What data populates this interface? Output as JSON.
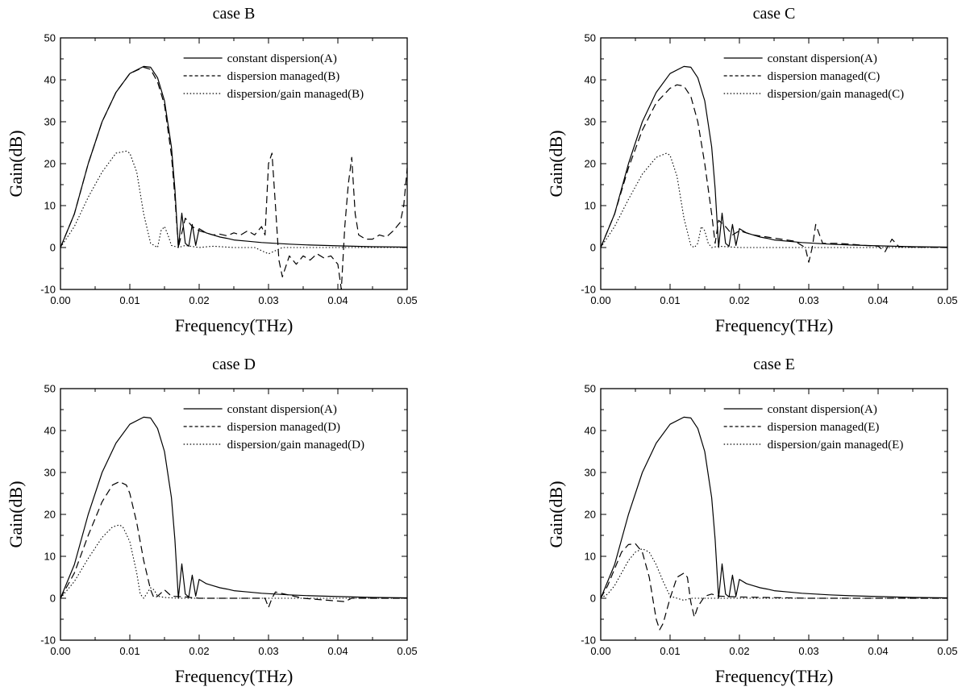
{
  "chart_data": [
    {
      "type": "line",
      "title": "case B",
      "xlabel": "Frequency(THz)",
      "ylabel": "Gain(dB)",
      "xlim": [
        0.0,
        0.05
      ],
      "ylim": [
        -10,
        50
      ],
      "xticks": [
        "0.00",
        "0.01",
        "0.02",
        "0.03",
        "0.04",
        "0.05"
      ],
      "yticks": [
        "-10",
        "0",
        "10",
        "20",
        "30",
        "40",
        "50"
      ],
      "grid": false,
      "legend_position": "top-right",
      "series": [
        {
          "name": "constant dispersion(A)",
          "style": "solid",
          "x": [
            0,
            0.002,
            0.004,
            0.006,
            0.008,
            0.01,
            0.012,
            0.013,
            0.014,
            0.015,
            0.016,
            0.0165,
            0.017,
            0.0175,
            0.018,
            0.0185,
            0.019,
            0.0195,
            0.02,
            0.021,
            0.022,
            0.023,
            0.024,
            0.025,
            0.027,
            0.029,
            0.031,
            0.033,
            0.036,
            0.04,
            0.045,
            0.05
          ],
          "y": [
            0,
            8,
            20,
            30,
            37,
            41.5,
            43.2,
            43,
            40.5,
            35,
            24,
            14,
            0,
            8.2,
            1,
            0.3,
            5.5,
            0.5,
            4.5,
            3.5,
            3,
            2.5,
            2.2,
            1.8,
            1.5,
            1.2,
            1,
            0.8,
            0.6,
            0.4,
            0.2,
            0.1
          ]
        },
        {
          "name": "dispersion managed(B)",
          "style": "dashed",
          "x": [
            0,
            0.002,
            0.004,
            0.006,
            0.008,
            0.01,
            0.012,
            0.013,
            0.014,
            0.015,
            0.016,
            0.0165,
            0.017,
            0.018,
            0.019,
            0.02,
            0.021,
            0.022,
            0.023,
            0.024,
            0.025,
            0.026,
            0.027,
            0.028,
            0.029,
            0.0295,
            0.03,
            0.0305,
            0.031,
            0.0315,
            0.032,
            0.033,
            0.034,
            0.035,
            0.036,
            0.037,
            0.038,
            0.039,
            0.04,
            0.0405,
            0.041,
            0.0415,
            0.042,
            0.0425,
            0.043,
            0.044,
            0.045,
            0.046,
            0.047,
            0.048,
            0.049,
            0.0495,
            0.05
          ],
          "y": [
            0,
            8,
            20,
            30,
            37,
            41.5,
            43,
            42.5,
            39.5,
            34,
            22,
            12,
            0,
            7,
            5,
            4,
            3.5,
            3,
            3.2,
            2.8,
            3.5,
            3,
            4,
            3,
            5,
            3,
            20,
            22.5,
            10,
            -3,
            -7,
            -2,
            -4,
            -2,
            -3,
            -1.5,
            -2.5,
            -2,
            -4,
            -10,
            5,
            15,
            21.5,
            8,
            3,
            2,
            2,
            3,
            2.5,
            4,
            6,
            10,
            19
          ]
        },
        {
          "name": "dispersion/gain managed(B)",
          "style": "dotted",
          "x": [
            0,
            0.002,
            0.004,
            0.006,
            0.008,
            0.0095,
            0.01,
            0.011,
            0.012,
            0.013,
            0.0135,
            0.014,
            0.0145,
            0.015,
            0.0155,
            0.016,
            0.017,
            0.018,
            0.02,
            0.022,
            0.025,
            0.028,
            0.03,
            0.032,
            0.035,
            0.04,
            0.045,
            0.05
          ],
          "y": [
            0,
            5,
            12,
            18,
            22.5,
            23,
            22.5,
            18,
            8,
            1,
            0.5,
            0,
            4,
            5,
            3,
            0.5,
            0,
            0.5,
            0,
            0.3,
            0,
            0,
            -1.5,
            0,
            0,
            0,
            0,
            0
          ]
        }
      ]
    },
    {
      "type": "line",
      "title": "case C",
      "xlabel": "Frequency(THz)",
      "ylabel": "Gain(dB)",
      "xlim": [
        0.0,
        0.05
      ],
      "ylim": [
        -10,
        50
      ],
      "xticks": [
        "0.00",
        "0.01",
        "0.02",
        "0.03",
        "0.04",
        "0.05"
      ],
      "yticks": [
        "-10",
        "0",
        "10",
        "20",
        "30",
        "40",
        "50"
      ],
      "grid": false,
      "legend_position": "top-right",
      "series": [
        {
          "name": "constant dispersion(A)",
          "style": "solid",
          "x": [
            0,
            0.002,
            0.004,
            0.006,
            0.008,
            0.01,
            0.012,
            0.013,
            0.014,
            0.015,
            0.016,
            0.0165,
            0.017,
            0.0175,
            0.018,
            0.0185,
            0.019,
            0.0195,
            0.02,
            0.021,
            0.022,
            0.023,
            0.024,
            0.025,
            0.027,
            0.029,
            0.031,
            0.033,
            0.036,
            0.04,
            0.045,
            0.05
          ],
          "y": [
            0,
            8,
            20,
            30,
            37,
            41.5,
            43.2,
            43,
            40.5,
            35,
            24,
            14,
            0,
            8.2,
            1,
            0.3,
            5.5,
            0.5,
            4.5,
            3.5,
            3,
            2.5,
            2.2,
            1.8,
            1.5,
            1.2,
            1,
            0.8,
            0.6,
            0.4,
            0.2,
            0.1
          ]
        },
        {
          "name": "dispersion managed(C)",
          "style": "dashed",
          "x": [
            0,
            0.002,
            0.004,
            0.006,
            0.008,
            0.01,
            0.011,
            0.012,
            0.013,
            0.014,
            0.015,
            0.016,
            0.0165,
            0.017,
            0.018,
            0.019,
            0.02,
            0.022,
            0.024,
            0.026,
            0.028,
            0.0295,
            0.03,
            0.0305,
            0.031,
            0.032,
            0.034,
            0.036,
            0.038,
            0.04,
            0.041,
            0.042,
            0.043,
            0.045,
            0.05
          ],
          "y": [
            0,
            8,
            19,
            28,
            34.5,
            38,
            38.8,
            38.5,
            36,
            30,
            20,
            8,
            1,
            6.5,
            5,
            3,
            4,
            3,
            2.5,
            2,
            1.5,
            0,
            -3.5,
            0,
            5.5,
            1,
            1,
            0.8,
            0.5,
            0.3,
            -1,
            2,
            0.2,
            0.1,
            0
          ]
        },
        {
          "name": "dispersion/gain managed(C)",
          "style": "dotted",
          "x": [
            0,
            0.002,
            0.004,
            0.006,
            0.008,
            0.0095,
            0.01,
            0.011,
            0.012,
            0.013,
            0.0135,
            0.014,
            0.0145,
            0.015,
            0.0155,
            0.016,
            0.017,
            0.02,
            0.025,
            0.03,
            0.035,
            0.04,
            0.045,
            0.05
          ],
          "y": [
            0,
            5,
            11.5,
            17.5,
            21.5,
            22.5,
            22,
            17,
            7,
            0.5,
            0,
            1,
            5,
            4,
            1,
            0,
            0.3,
            0,
            0,
            0,
            0,
            0,
            0,
            0
          ]
        }
      ]
    },
    {
      "type": "line",
      "title": "case D",
      "xlabel": "Frequency(THz)",
      "ylabel": "Gain(dB)",
      "xlim": [
        0.0,
        0.05
      ],
      "ylim": [
        -10,
        50
      ],
      "xticks": [
        "0.00",
        "0.01",
        "0.02",
        "0.03",
        "0.04",
        "0.05"
      ],
      "yticks": [
        "-10",
        "0",
        "10",
        "20",
        "30",
        "40",
        "50"
      ],
      "grid": false,
      "legend_position": "top-right",
      "series": [
        {
          "name": "constant dispersion(A)",
          "style": "solid",
          "x": [
            0,
            0.002,
            0.004,
            0.006,
            0.008,
            0.01,
            0.012,
            0.013,
            0.014,
            0.015,
            0.016,
            0.0165,
            0.017,
            0.0175,
            0.018,
            0.0185,
            0.019,
            0.0195,
            0.02,
            0.021,
            0.022,
            0.023,
            0.024,
            0.025,
            0.027,
            0.029,
            0.031,
            0.033,
            0.036,
            0.04,
            0.045,
            0.05
          ],
          "y": [
            0,
            8,
            20,
            30,
            37,
            41.5,
            43.2,
            43,
            40.5,
            35,
            24,
            14,
            0,
            8.2,
            1,
            0.3,
            5.5,
            0.5,
            4.5,
            3.5,
            3,
            2.5,
            2.2,
            1.8,
            1.5,
            1.2,
            1,
            0.8,
            0.6,
            0.4,
            0.2,
            0.1
          ]
        },
        {
          "name": "dispersion managed(D)",
          "style": "dashed",
          "x": [
            0,
            0.002,
            0.004,
            0.006,
            0.0075,
            0.0085,
            0.0095,
            0.01,
            0.011,
            0.012,
            0.013,
            0.0135,
            0.014,
            0.015,
            0.016,
            0.018,
            0.02,
            0.025,
            0.0295,
            0.03,
            0.0305,
            0.031,
            0.035,
            0.041,
            0.042,
            0.045,
            0.05
          ],
          "y": [
            0,
            6,
            15,
            23,
            27,
            27.8,
            27,
            25,
            18,
            9,
            2,
            0,
            0.5,
            2,
            0.5,
            0.3,
            0,
            0,
            0,
            -2.2,
            0,
            1.5,
            0,
            -0.8,
            0,
            0,
            0
          ]
        },
        {
          "name": "dispersion/gain managed(D)",
          "style": "dotted",
          "x": [
            0,
            0.002,
            0.004,
            0.006,
            0.0075,
            0.0085,
            0.009,
            0.01,
            0.011,
            0.0115,
            0.012,
            0.013,
            0.0135,
            0.014,
            0.015,
            0.017,
            0.02,
            0.025,
            0.03,
            0.035,
            0.04,
            0.045,
            0.05
          ],
          "y": [
            0,
            4,
            9.5,
            14.5,
            17,
            17.5,
            17,
            13.5,
            6,
            1,
            0,
            2.5,
            2,
            0.5,
            0.2,
            0,
            0,
            0,
            0,
            0,
            0,
            0,
            0
          ]
        }
      ]
    },
    {
      "type": "line",
      "title": "case E",
      "xlabel": "Frequency(THz)",
      "ylabel": "Gain(dB)",
      "xlim": [
        0.0,
        0.05
      ],
      "ylim": [
        -10,
        50
      ],
      "xticks": [
        "0.00",
        "0.01",
        "0.02",
        "0.03",
        "0.04",
        "0.05"
      ],
      "yticks": [
        "-10",
        "0",
        "10",
        "20",
        "30",
        "40",
        "50"
      ],
      "grid": false,
      "legend_position": "top-right",
      "series": [
        {
          "name": "constant dispersion(A)",
          "style": "solid",
          "x": [
            0,
            0.002,
            0.004,
            0.006,
            0.008,
            0.01,
            0.012,
            0.013,
            0.014,
            0.015,
            0.016,
            0.0165,
            0.017,
            0.0175,
            0.018,
            0.0185,
            0.019,
            0.0195,
            0.02,
            0.021,
            0.022,
            0.023,
            0.024,
            0.025,
            0.027,
            0.029,
            0.031,
            0.033,
            0.036,
            0.04,
            0.045,
            0.05
          ],
          "y": [
            0,
            8,
            20,
            30,
            37,
            41.5,
            43.2,
            43,
            40.5,
            35,
            24,
            14,
            0,
            8.2,
            1,
            0.3,
            5.5,
            0.5,
            4.5,
            3.5,
            3,
            2.5,
            2.2,
            1.8,
            1.5,
            1.2,
            1,
            0.8,
            0.6,
            0.4,
            0.2,
            0.1
          ]
        },
        {
          "name": "dispersion managed(E)",
          "style": "dashed",
          "x": [
            0,
            0.001,
            0.002,
            0.003,
            0.004,
            0.005,
            0.006,
            0.007,
            0.008,
            0.0085,
            0.009,
            0.01,
            0.011,
            0.012,
            0.0125,
            0.013,
            0.0135,
            0.014,
            0.015,
            0.016,
            0.017,
            0.02,
            0.03,
            0.04,
            0.05
          ],
          "y": [
            0,
            3,
            7,
            11,
            12.8,
            13,
            11,
            5,
            -5,
            -7.5,
            -6,
            0,
            5,
            6,
            5,
            -1,
            -4.5,
            -2,
            0.5,
            1,
            0.5,
            0.3,
            0,
            0,
            0
          ]
        },
        {
          "name": "dispersion/gain managed(E)",
          "style": "dotted",
          "x": [
            0,
            0.001,
            0.002,
            0.003,
            0.004,
            0.005,
            0.006,
            0.007,
            0.008,
            0.009,
            0.01,
            0.011,
            0.012,
            0.013,
            0.014,
            0.016,
            0.018,
            0.02,
            0.03,
            0.04,
            0.05
          ],
          "y": [
            0,
            1,
            3,
            6,
            9,
            11,
            11.8,
            11,
            8,
            4,
            0.5,
            0,
            -0.5,
            0,
            0,
            0,
            0,
            0,
            0,
            0,
            0
          ]
        }
      ]
    }
  ]
}
